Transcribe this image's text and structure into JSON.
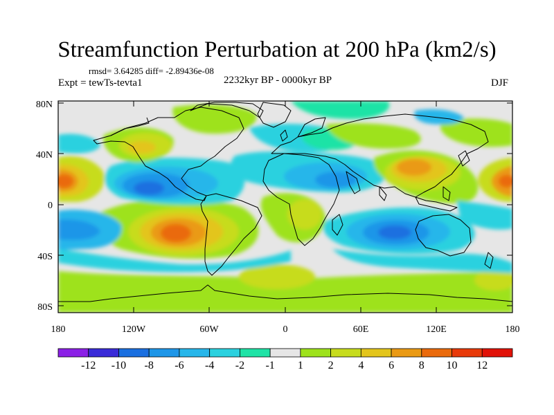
{
  "title": "Streamfunction Perturbation at 200 hPa (km2/s)",
  "stats": "rmsd= 3.64285 diff= -2.89436e-08",
  "expt": "Expt = tewTs-tevta1",
  "period": "2232kyr BP - 0000kyr BP",
  "season": "DJF",
  "lat_ticks": [
    "80N",
    "40N",
    "0",
    "40S",
    "80S"
  ],
  "lon_ticks": [
    "180",
    "120W",
    "60W",
    "0",
    "60E",
    "120E",
    "180"
  ],
  "colorbar": {
    "labels": [
      "-12",
      "-10",
      "-8",
      "-6",
      "-4",
      "-2",
      "-1",
      "1",
      "2",
      "4",
      "6",
      "8",
      "10",
      "12"
    ],
    "colors": [
      "#8b20e6",
      "#3a2bd8",
      "#1a6fe0",
      "#1e96e8",
      "#27b6ea",
      "#2bd1df",
      "#1fe3a6",
      "#e6e6e6",
      "#9ee21c",
      "#c7dc1d",
      "#e3c51c",
      "#ea9a14",
      "#ea6a0c",
      "#e83a0a",
      "#e11208"
    ]
  }
}
